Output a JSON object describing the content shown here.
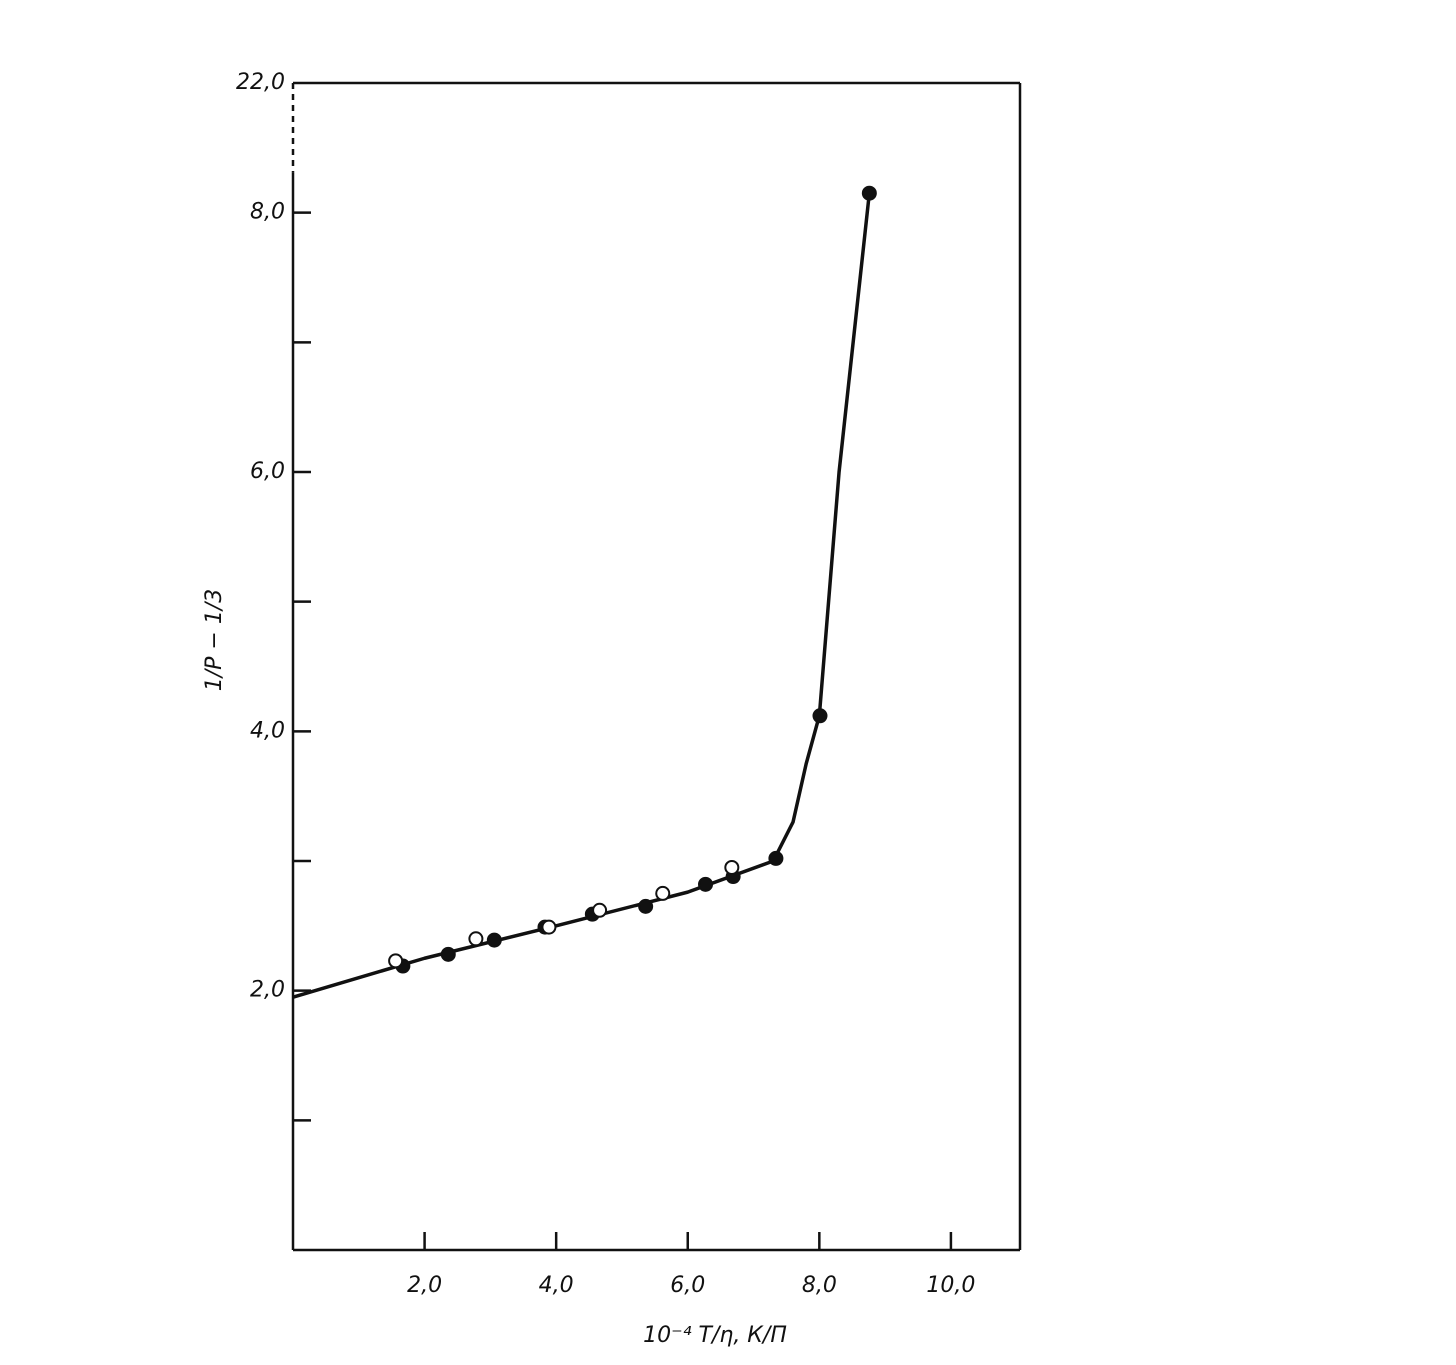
{
  "chart_data": {
    "type": "scatter",
    "xlabel": "10⁻⁴ T/η, К/П",
    "ylabel": "1/P − 1/3",
    "y_break_label": "22,0",
    "xlim": [
      0,
      11.05
    ],
    "ylim": [
      0,
      9
    ],
    "xticks": [
      {
        "value": 2,
        "label": "2,0"
      },
      {
        "value": 4,
        "label": "4,0"
      },
      {
        "value": 6,
        "label": "6,0"
      },
      {
        "value": 8,
        "label": "8,0"
      },
      {
        "value": 10,
        "label": "10,0"
      }
    ],
    "yticks": [
      {
        "value": 2,
        "label": "2,0"
      },
      {
        "value": 4,
        "label": "4,0"
      },
      {
        "value": 6,
        "label": "6,0"
      },
      {
        "value": 8,
        "label": "8,0"
      }
    ],
    "y_minor_ticks": [
      1,
      3,
      5,
      7
    ],
    "series": [
      {
        "style": "line",
        "color": "#111",
        "x": [
          0,
          2,
          4,
          6,
          7.3,
          7.6,
          7.8,
          8.0,
          8.3,
          8.76
        ],
        "values": [
          1.95,
          2.25,
          2.5,
          2.76,
          3.0,
          3.3,
          3.75,
          4.12,
          6.0,
          8.15
        ]
      },
      {
        "style": "filled",
        "color": "#111",
        "x": [
          1.67,
          2.36,
          3.06,
          3.83,
          4.55,
          5.36,
          6.27,
          6.69,
          7.34,
          8.01,
          8.76
        ],
        "values": [
          2.19,
          2.28,
          2.39,
          2.49,
          2.59,
          2.65,
          2.82,
          2.88,
          3.02,
          4.12,
          8.15
        ]
      },
      {
        "style": "open",
        "color": "#111",
        "x": [
          1.56,
          2.78,
          3.89,
          4.66,
          5.62,
          6.67
        ],
        "values": [
          2.23,
          2.4,
          2.49,
          2.62,
          2.75,
          2.95
        ]
      }
    ]
  }
}
